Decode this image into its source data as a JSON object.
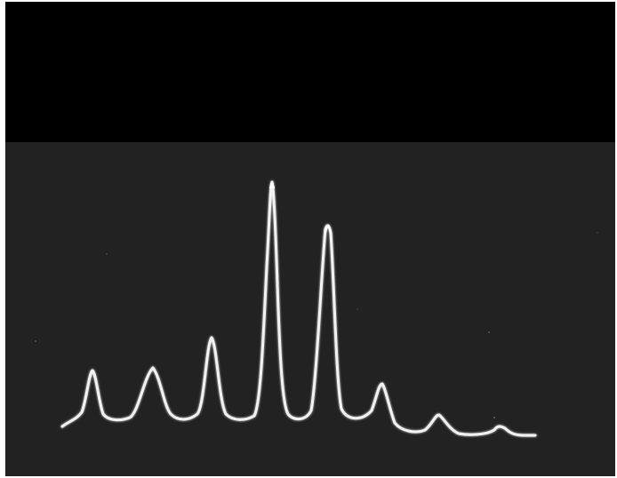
{
  "scene": {
    "description_kind": "oscilloscope-photo",
    "trace_color": "#f2f2f2",
    "glow_color": "#ffffff",
    "band_color": "#000000",
    "screen_color": "#222222"
  },
  "trace": {
    "peak_count": 8
  }
}
